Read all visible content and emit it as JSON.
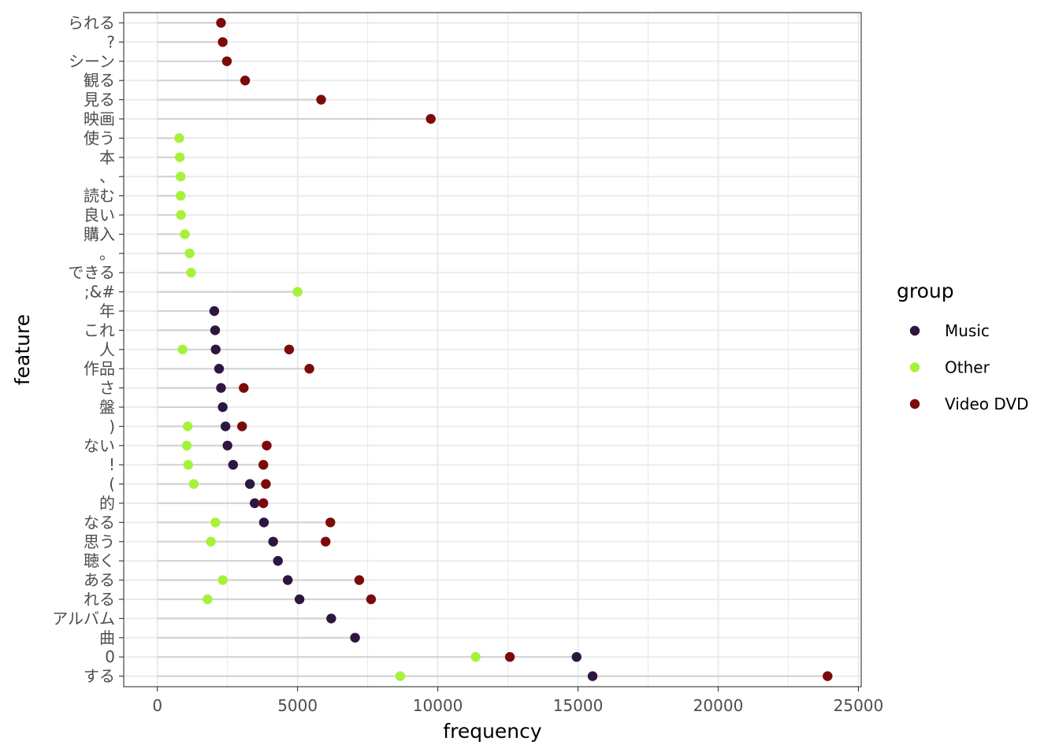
{
  "chart_data": {
    "type": "scatter",
    "xlabel": "frequency",
    "ylabel": "feature",
    "xlim": [
      -1200,
      25100
    ],
    "x_ticks": [
      0,
      5000,
      10000,
      15000,
      20000,
      25000
    ],
    "grid": true,
    "legend": {
      "title": "group",
      "placement": "right",
      "entries": [
        {
          "name": "Music",
          "color": "#2d1640"
        },
        {
          "name": "Other",
          "color": "#a6f23a"
        },
        {
          "name": "Video DVD",
          "color": "#7d0a0a"
        }
      ]
    },
    "features": [
      "られる",
      "?",
      "シーン",
      "観る",
      "見る",
      "映画",
      "使う",
      "本",
      "、",
      "読む",
      "良い",
      "購入",
      "。",
      "できる",
      ";&#",
      "年",
      "これ",
      "人",
      "作品",
      "さ",
      "盤",
      ")",
      "ない",
      "!",
      "(",
      "的",
      "なる",
      "思う",
      "聴く",
      "ある",
      "れる",
      "アルバム",
      "曲",
      "0",
      "する"
    ],
    "series": [
      {
        "name": "Music",
        "color": "#2d1640",
        "points": [
          {
            "feature": "年",
            "value": 2030
          },
          {
            "feature": "これ",
            "value": 2060
          },
          {
            "feature": "人",
            "value": 2080
          },
          {
            "feature": "作品",
            "value": 2200
          },
          {
            "feature": "さ",
            "value": 2270
          },
          {
            "feature": "盤",
            "value": 2330
          },
          {
            "feature": ")",
            "value": 2430
          },
          {
            "feature": "ない",
            "value": 2500
          },
          {
            "feature": "!",
            "value": 2700
          },
          {
            "feature": "(",
            "value": 3300
          },
          {
            "feature": "的",
            "value": 3470
          },
          {
            "feature": "なる",
            "value": 3800
          },
          {
            "feature": "思う",
            "value": 4130
          },
          {
            "feature": "聴く",
            "value": 4300
          },
          {
            "feature": "ある",
            "value": 4650
          },
          {
            "feature": "れる",
            "value": 5070
          },
          {
            "feature": "アルバム",
            "value": 6200
          },
          {
            "feature": "曲",
            "value": 7050
          },
          {
            "feature": "0",
            "value": 14950
          },
          {
            "feature": "する",
            "value": 15520
          }
        ]
      },
      {
        "name": "Other",
        "color": "#a6f23a",
        "points": [
          {
            "feature": "使う",
            "value": 780
          },
          {
            "feature": "本",
            "value": 800
          },
          {
            "feature": "、",
            "value": 830
          },
          {
            "feature": "読む",
            "value": 830
          },
          {
            "feature": "良い",
            "value": 840
          },
          {
            "feature": "購入",
            "value": 980
          },
          {
            "feature": "。",
            "value": 1150
          },
          {
            "feature": "できる",
            "value": 1200
          },
          {
            "feature": ";&#",
            "value": 5000
          },
          {
            "feature": "人",
            "value": 900
          },
          {
            "feature": ")",
            "value": 1080
          },
          {
            "feature": "ない",
            "value": 1050
          },
          {
            "feature": "!",
            "value": 1100
          },
          {
            "feature": "(",
            "value": 1300
          },
          {
            "feature": "なる",
            "value": 2070
          },
          {
            "feature": "思う",
            "value": 1910
          },
          {
            "feature": "ある",
            "value": 2330
          },
          {
            "feature": "れる",
            "value": 1790
          },
          {
            "feature": "0",
            "value": 11350
          },
          {
            "feature": "する",
            "value": 8660
          }
        ]
      },
      {
        "name": "Video DVD",
        "color": "#7d0a0a",
        "points": [
          {
            "feature": "られる",
            "value": 2270
          },
          {
            "feature": "?",
            "value": 2330
          },
          {
            "feature": "シーン",
            "value": 2480
          },
          {
            "feature": "観る",
            "value": 3130
          },
          {
            "feature": "見る",
            "value": 5840
          },
          {
            "feature": "映画",
            "value": 9750
          },
          {
            "feature": "人",
            "value": 4700
          },
          {
            "feature": "作品",
            "value": 5420
          },
          {
            "feature": "さ",
            "value": 3080
          },
          {
            "feature": ")",
            "value": 3020
          },
          {
            "feature": "ない",
            "value": 3900
          },
          {
            "feature": "!",
            "value": 3780
          },
          {
            "feature": "(",
            "value": 3870
          },
          {
            "feature": "的",
            "value": 3780
          },
          {
            "feature": "なる",
            "value": 6170
          },
          {
            "feature": "思う",
            "value": 6000
          },
          {
            "feature": "ある",
            "value": 7200
          },
          {
            "feature": "れる",
            "value": 7620
          },
          {
            "feature": "0",
            "value": 12570
          },
          {
            "feature": "する",
            "value": 23900
          }
        ]
      }
    ]
  }
}
